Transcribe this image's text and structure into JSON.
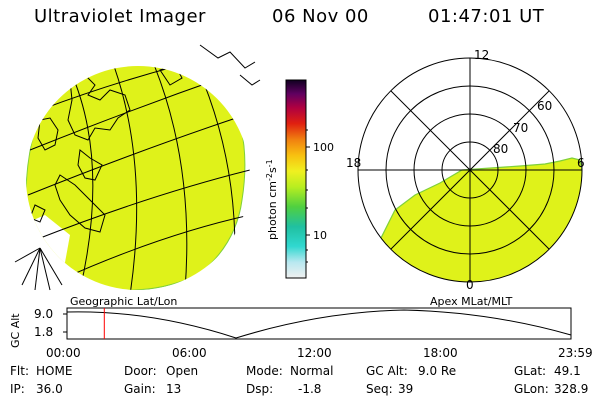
{
  "header": {
    "instrument": "Ultraviolet Imager",
    "date": "06 Nov 00",
    "time": "01:47:01 UT"
  },
  "colors": {
    "emission": "#dff21a",
    "emission_edge": "#7fd03a"
  },
  "colorbar": {
    "unit": "photon cm",
    "unit_sup1": "-2",
    "unit_s": "s",
    "unit_sup2": "-1",
    "ticks": [
      "100",
      "10"
    ]
  },
  "maps": {
    "left_label": "Geographic Lat/Lon",
    "right_label": "Apex MLat/MLT",
    "mlt_labels": {
      "top": "12",
      "left": "18",
      "right": "6",
      "bottom": "0"
    },
    "mlat_labels": [
      "60",
      "70",
      "80"
    ]
  },
  "timeline": {
    "ylabel": "GC Alt",
    "yticks": [
      "9.0",
      "1.8"
    ],
    "xticks": [
      "00:00",
      "06:00",
      "12:00",
      "18:00",
      "23:59"
    ],
    "current_time_fraction": 0.074
  },
  "info": {
    "col1": [
      {
        "label": "Flt:",
        "value": "HOME"
      },
      {
        "label": "IP:",
        "value": "36.0"
      }
    ],
    "col2": [
      {
        "label": "Door:",
        "value": "Open"
      },
      {
        "label": "Gain:",
        "value": "13"
      }
    ],
    "col3": [
      {
        "label": "Mode:",
        "value": "Normal"
      },
      {
        "label": "Dsp:",
        "value": "-1.8"
      }
    ],
    "col4": [
      {
        "label": "GC Alt:",
        "value": "9.0 Re"
      },
      {
        "label": "Seq:",
        "value": "39"
      }
    ],
    "col5": [
      {
        "label": "GLat:",
        "value": "49.1"
      },
      {
        "label": "GLon:",
        "value": "328.9"
      }
    ]
  }
}
